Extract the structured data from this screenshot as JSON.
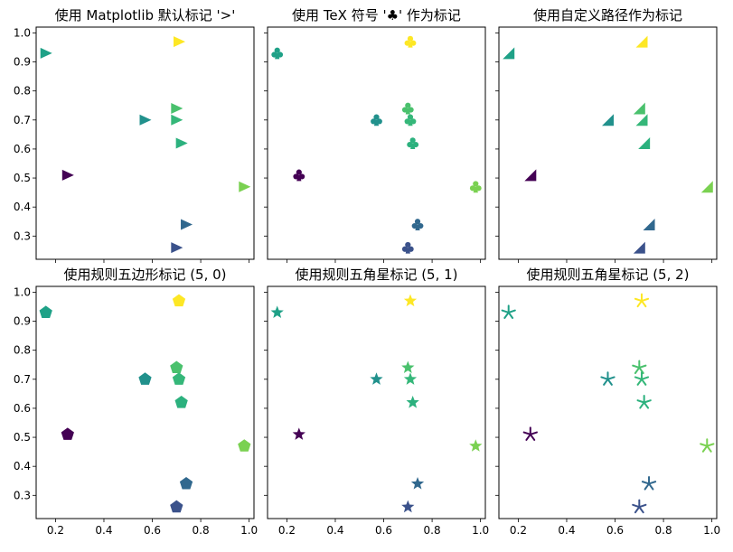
{
  "figure": {
    "background": "#ffffff"
  },
  "chart_data": [
    {
      "type": "scatter",
      "title": "使用 Matplotlib 默认标记 '>'",
      "marker": "triangle-right",
      "xlabel": "",
      "ylabel": "",
      "xlim": [
        0.12,
        1.02
      ],
      "ylim": [
        0.22,
        1.02
      ],
      "xticks": [
        "0.2",
        "0.4",
        "0.6",
        "0.8",
        "1.0"
      ],
      "yticks": [
        "0.3",
        "0.4",
        "0.5",
        "0.6",
        "0.7",
        "0.8",
        "0.9",
        "1.0"
      ],
      "show_xticklabels": false,
      "show_yticklabels": true,
      "grid": false,
      "x": [
        0.16,
        0.25,
        0.57,
        0.7,
        0.7,
        0.7,
        0.72,
        0.74,
        0.98,
        0.71
      ],
      "y": [
        0.93,
        0.51,
        0.7,
        0.74,
        0.7,
        0.26,
        0.62,
        0.34,
        0.47,
        0.97
      ],
      "colors": [
        "#1fa187",
        "#440154",
        "#21918c",
        "#4ac16d",
        "#35b779",
        "#3b528b",
        "#2cb17e",
        "#31688e",
        "#7ad151",
        "#fde725"
      ]
    },
    {
      "type": "scatter",
      "title": "使用 TeX 符号 '♣' 作为标记",
      "marker": "club",
      "xlabel": "",
      "ylabel": "",
      "xlim": [
        0.12,
        1.02
      ],
      "ylim": [
        0.22,
        1.02
      ],
      "xticks": [
        "0.2",
        "0.4",
        "0.6",
        "0.8",
        "1.0"
      ],
      "yticks": [
        "0.3",
        "0.4",
        "0.5",
        "0.6",
        "0.7",
        "0.8",
        "0.9",
        "1.0"
      ],
      "show_xticklabels": false,
      "show_yticklabels": false,
      "grid": false,
      "x": [
        0.16,
        0.25,
        0.57,
        0.7,
        0.71,
        0.7,
        0.72,
        0.74,
        0.98,
        0.71
      ],
      "y": [
        0.93,
        0.51,
        0.7,
        0.74,
        0.7,
        0.26,
        0.62,
        0.34,
        0.47,
        0.97
      ],
      "colors": [
        "#1fa187",
        "#440154",
        "#21918c",
        "#4ac16d",
        "#35b779",
        "#3b528b",
        "#2cb17e",
        "#31688e",
        "#7ad151",
        "#fde725"
      ]
    },
    {
      "type": "scatter",
      "title": "使用自定义路径作为标记",
      "marker": "corner-triangle",
      "xlabel": "",
      "ylabel": "",
      "xlim": [
        0.12,
        1.02
      ],
      "ylim": [
        0.22,
        1.02
      ],
      "xticks": [
        "0.2",
        "0.4",
        "0.6",
        "0.8",
        "1.0"
      ],
      "yticks": [
        "0.3",
        "0.4",
        "0.5",
        "0.6",
        "0.7",
        "0.8",
        "0.9",
        "1.0"
      ],
      "show_xticklabels": false,
      "show_yticklabels": false,
      "grid": false,
      "x": [
        0.16,
        0.25,
        0.57,
        0.7,
        0.71,
        0.7,
        0.72,
        0.74,
        0.98,
        0.71
      ],
      "y": [
        0.93,
        0.51,
        0.7,
        0.74,
        0.7,
        0.26,
        0.62,
        0.34,
        0.47,
        0.97
      ],
      "colors": [
        "#1fa187",
        "#440154",
        "#21918c",
        "#4ac16d",
        "#35b779",
        "#3b528b",
        "#2cb17e",
        "#31688e",
        "#7ad151",
        "#fde725"
      ]
    },
    {
      "type": "scatter",
      "title": "使用规则五边形标记 (5, 0)",
      "marker": "pentagon",
      "xlabel": "",
      "ylabel": "",
      "xlim": [
        0.12,
        1.02
      ],
      "ylim": [
        0.22,
        1.02
      ],
      "xticks": [
        "0.2",
        "0.4",
        "0.6",
        "0.8",
        "1.0"
      ],
      "yticks": [
        "0.3",
        "0.4",
        "0.5",
        "0.6",
        "0.7",
        "0.8",
        "0.9",
        "1.0"
      ],
      "show_xticklabels": true,
      "show_yticklabels": true,
      "grid": false,
      "x": [
        0.16,
        0.25,
        0.57,
        0.7,
        0.71,
        0.7,
        0.72,
        0.74,
        0.98,
        0.71
      ],
      "y": [
        0.93,
        0.51,
        0.7,
        0.74,
        0.7,
        0.26,
        0.62,
        0.34,
        0.47,
        0.97
      ],
      "colors": [
        "#1fa187",
        "#440154",
        "#21918c",
        "#4ac16d",
        "#35b779",
        "#3b528b",
        "#2cb17e",
        "#31688e",
        "#7ad151",
        "#fde725"
      ]
    },
    {
      "type": "scatter",
      "title": "使用规则五角星标记 (5, 1)",
      "marker": "star",
      "xlabel": "",
      "ylabel": "",
      "xlim": [
        0.12,
        1.02
      ],
      "ylim": [
        0.22,
        1.02
      ],
      "xticks": [
        "0.2",
        "0.4",
        "0.6",
        "0.8",
        "1.0"
      ],
      "yticks": [
        "0.3",
        "0.4",
        "0.5",
        "0.6",
        "0.7",
        "0.8",
        "0.9",
        "1.0"
      ],
      "show_xticklabels": true,
      "show_yticklabels": false,
      "grid": false,
      "x": [
        0.16,
        0.25,
        0.57,
        0.7,
        0.71,
        0.7,
        0.72,
        0.74,
        0.98,
        0.71
      ],
      "y": [
        0.93,
        0.51,
        0.7,
        0.74,
        0.7,
        0.26,
        0.62,
        0.34,
        0.47,
        0.97
      ],
      "colors": [
        "#1fa187",
        "#440154",
        "#21918c",
        "#4ac16d",
        "#35b779",
        "#3b528b",
        "#2cb17e",
        "#31688e",
        "#7ad151",
        "#fde725"
      ]
    },
    {
      "type": "scatter",
      "title": "使用规则五角星标记 (5, 2)",
      "marker": "asterisk",
      "xlabel": "",
      "ylabel": "",
      "xlim": [
        0.12,
        1.02
      ],
      "ylim": [
        0.22,
        1.02
      ],
      "xticks": [
        "0.2",
        "0.4",
        "0.6",
        "0.8",
        "1.0"
      ],
      "yticks": [
        "0.3",
        "0.4",
        "0.5",
        "0.6",
        "0.7",
        "0.8",
        "0.9",
        "1.0"
      ],
      "show_xticklabels": true,
      "show_yticklabels": false,
      "grid": false,
      "x": [
        0.16,
        0.25,
        0.57,
        0.7,
        0.71,
        0.7,
        0.72,
        0.74,
        0.98,
        0.71
      ],
      "y": [
        0.93,
        0.51,
        0.7,
        0.74,
        0.7,
        0.26,
        0.62,
        0.34,
        0.47,
        0.97
      ],
      "colors": [
        "#1fa187",
        "#440154",
        "#21918c",
        "#4ac16d",
        "#35b779",
        "#3b528b",
        "#2cb17e",
        "#31688e",
        "#7ad151",
        "#fde725"
      ]
    }
  ]
}
